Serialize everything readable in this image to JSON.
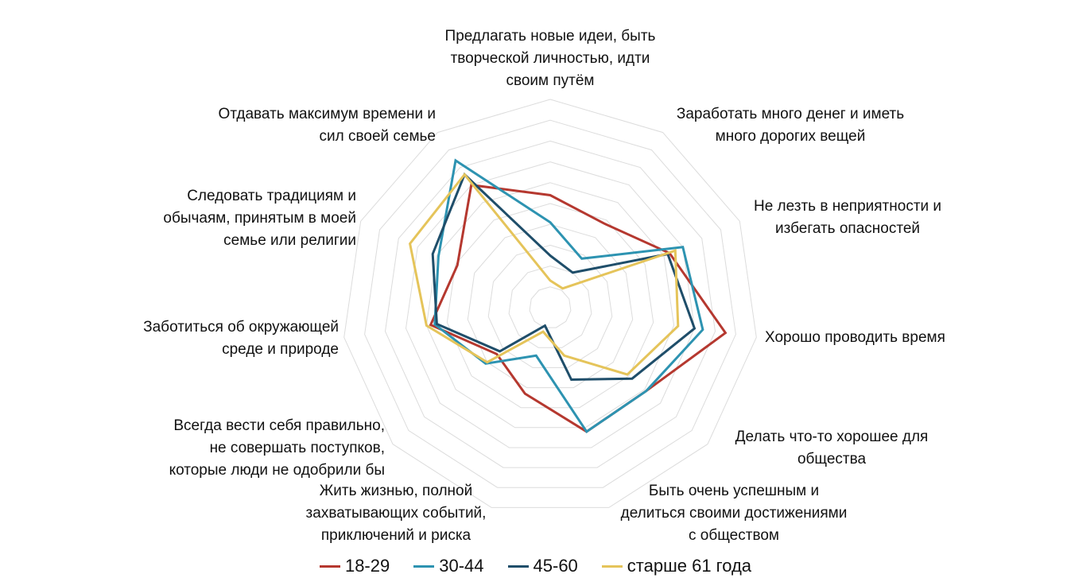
{
  "chart_data": {
    "type": "radar",
    "categories": [
      [
        "Предлагать новые идеи, быть",
        "творческой личностью, идти",
        "своим путём"
      ],
      [
        "Заработать много денег и иметь",
        "много дорогих вещей"
      ],
      [
        "Не лезть в неприятности и",
        "избегать опасностей"
      ],
      [
        "Хорошо проводить время"
      ],
      [
        "Делать что-то хорошее для",
        "общества"
      ],
      [
        "Быть очень успешным и",
        "делиться своими достижениями",
        "с обществом"
      ],
      [
        "Жить жизнью, полной",
        "захватывающих событий,",
        "приключений и риска"
      ],
      [
        "Всегда вести себя правильно,",
        "не совершать поступков,",
        "которые люди не одобрили бы"
      ],
      [
        "Заботиться об окружающей",
        "среде и природе"
      ],
      [
        "Следовать традициям и",
        "обычаям, принятым в моей",
        "семье или религии"
      ],
      [
        "Отдавать максимум времени и",
        "сил своей семье"
      ]
    ],
    "series": [
      {
        "name": "18-29",
        "color": "#b5382f",
        "values": [
          54,
          48,
          63,
          85,
          61,
          62,
          43,
          34,
          58,
          49,
          70
        ]
      },
      {
        "name": "30-44",
        "color": "#2d93b1",
        "values": [
          41,
          28,
          70,
          74,
          61,
          62,
          24,
          41,
          56,
          59,
          84
        ]
      },
      {
        "name": "45-60",
        "color": "#1f4e6a",
        "values": [
          25,
          20,
          62,
          70,
          52,
          36,
          9,
          32,
          55,
          62,
          76
        ]
      },
      {
        "name": "старше 61 года",
        "color": "#e5c45a",
        "values": [
          13,
          11,
          66,
          62,
          49,
          24,
          12,
          40,
          60,
          74,
          76
        ]
      }
    ],
    "r_min": 0,
    "r_max": 100,
    "gridlines": [
      10,
      20,
      30,
      40,
      50,
      60,
      70,
      80,
      90,
      100
    ],
    "legend_position": "bottom"
  }
}
